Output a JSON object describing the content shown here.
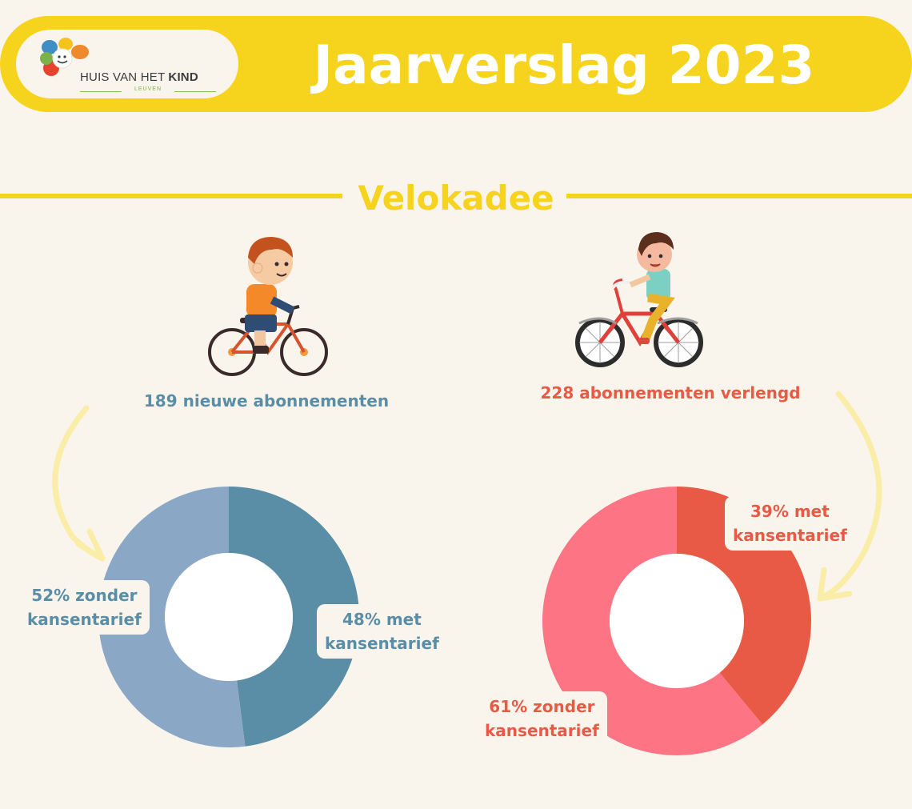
{
  "header": {
    "title": "Jaarverslag 2023",
    "logo": {
      "text_regular": "HUIS VAN HET ",
      "text_bold": "KIND",
      "subtext": "LEUVEN"
    }
  },
  "section": {
    "title": "Velokadee"
  },
  "left": {
    "count_label": "189 nieuwe abonnementen",
    "color": "#5a8ea6"
  },
  "right": {
    "count_label": "228 abonnementen verlengd",
    "color": "#e85a46"
  },
  "chart_data": [
    {
      "type": "pie",
      "title": "189 nieuwe abonnementen",
      "categories": [
        "met kansentarief",
        "zonder kansentarief"
      ],
      "values": [
        48,
        52
      ],
      "colors": [
        "#5a8ea6",
        "#8aa8c6"
      ],
      "labels": {
        "met_line1": "48% met",
        "met_line2": "kansentarief",
        "zonder_line1": "52% zonder",
        "zonder_line2": "kansentarief"
      },
      "label_color": "#5a8ea6"
    },
    {
      "type": "pie",
      "title": "228 abonnementen verlengd",
      "categories": [
        "met kansentarief",
        "zonder kansentarief"
      ],
      "values": [
        39,
        61
      ],
      "colors": [
        "#e85a46",
        "#fd7584"
      ],
      "labels": {
        "met_line1": "39% met",
        "met_line2": "kansentarief",
        "zonder_line1": "61% zonder",
        "zonder_line2": "kansentarief"
      },
      "label_color": "#e85a46"
    }
  ]
}
